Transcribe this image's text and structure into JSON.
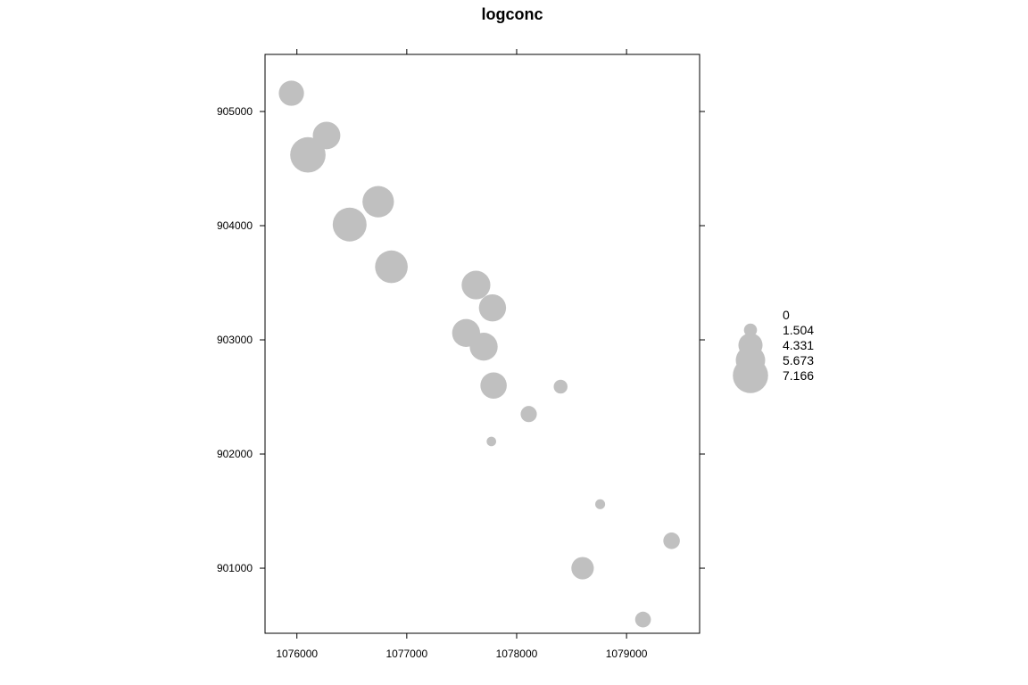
{
  "chart_data": {
    "type": "scatter",
    "title": "logconc",
    "xlabel": "",
    "ylabel": "",
    "xlim": [
      1075710,
      1079665
    ],
    "ylim": [
      900430,
      905500
    ],
    "x_ticks": [
      1076000,
      1077000,
      1078000,
      1079000
    ],
    "y_ticks": [
      901000,
      902000,
      903000,
      904000,
      905000
    ],
    "grid": false,
    "legend_position": "right",
    "marker_color": "#c0c0c0",
    "size_legend": [
      {
        "label": "0",
        "value": 0
      },
      {
        "label": "1.504",
        "value": 1.504
      },
      {
        "label": "4.331",
        "value": 4.331
      },
      {
        "label": "5.673",
        "value": 5.673
      },
      {
        "label": "7.166",
        "value": 7.166
      }
    ],
    "points": [
      {
        "x": 1075950,
        "y": 905160,
        "value": 4.6
      },
      {
        "x": 1076270,
        "y": 904790,
        "value": 5.2
      },
      {
        "x": 1076100,
        "y": 904620,
        "value": 7.2
      },
      {
        "x": 1076480,
        "y": 904010,
        "value": 6.8
      },
      {
        "x": 1076740,
        "y": 904210,
        "value": 6.2
      },
      {
        "x": 1076860,
        "y": 903640,
        "value": 6.5
      },
      {
        "x": 1077630,
        "y": 903480,
        "value": 5.5
      },
      {
        "x": 1077780,
        "y": 903280,
        "value": 5.1
      },
      {
        "x": 1077540,
        "y": 903060,
        "value": 5.3
      },
      {
        "x": 1077700,
        "y": 902940,
        "value": 5.3
      },
      {
        "x": 1077790,
        "y": 902600,
        "value": 4.9
      },
      {
        "x": 1078400,
        "y": 902590,
        "value": 1.7
      },
      {
        "x": 1078110,
        "y": 902350,
        "value": 2.3
      },
      {
        "x": 1077770,
        "y": 902110,
        "value": 0.6
      },
      {
        "x": 1078760,
        "y": 901560,
        "value": 0.7
      },
      {
        "x": 1079410,
        "y": 901240,
        "value": 2.4
      },
      {
        "x": 1078600,
        "y": 901000,
        "value": 3.9
      },
      {
        "x": 1079150,
        "y": 900550,
        "value": 2.2
      }
    ]
  }
}
